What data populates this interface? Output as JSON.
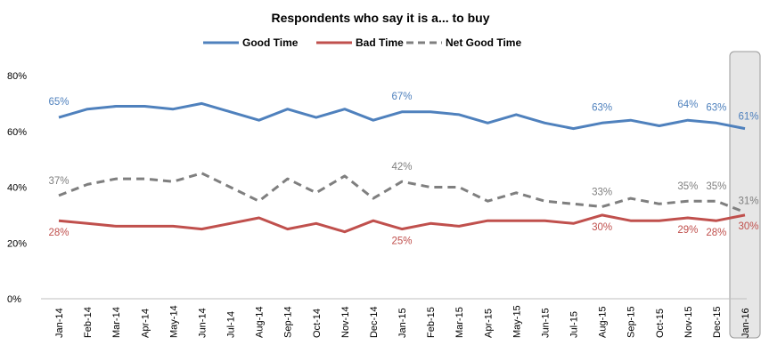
{
  "chart_data": {
    "type": "line",
    "title": "Respondents who say it is a... to buy",
    "xlabel": "",
    "ylabel": "",
    "ylim": [
      0,
      80
    ],
    "yticks": [
      "0%",
      "20%",
      "40%",
      "60%",
      "80%"
    ],
    "grid": false,
    "legend_position": "top",
    "highlight_category": "Jan-16",
    "categories": [
      "Jan-14",
      "Feb-14",
      "Mar-14",
      "Apr-14",
      "May-14",
      "Jun-14",
      "Jul-14",
      "Aug-14",
      "Sep-14",
      "Oct-14",
      "Nov-14",
      "Dec-14",
      "Jan-15",
      "Feb-15",
      "Mar-15",
      "Apr-15",
      "May-15",
      "Jun-15",
      "Jul-15",
      "Aug-15",
      "Sep-15",
      "Oct-15",
      "Nov-15",
      "Dec-15",
      "Jan-16"
    ],
    "series": [
      {
        "name": "Good Time",
        "color": "#4F81BD",
        "dash": "solid",
        "values": [
          65,
          68,
          69,
          69,
          68,
          70,
          67,
          64,
          68,
          65,
          68,
          64,
          67,
          67,
          66,
          63,
          66,
          63,
          61,
          63,
          64,
          62,
          64,
          63,
          61
        ],
        "labels": [
          {
            "index": 0,
            "text": "65%"
          },
          {
            "index": 12,
            "text": "67%"
          },
          {
            "index": 19,
            "text": "63%"
          },
          {
            "index": 22,
            "text": "64%"
          },
          {
            "index": 23,
            "text": "63%"
          },
          {
            "index": 24,
            "text": "61%"
          }
        ]
      },
      {
        "name": "Bad Time",
        "color": "#C0504D",
        "dash": "solid",
        "values": [
          28,
          27,
          26,
          26,
          26,
          25,
          27,
          29,
          25,
          27,
          24,
          28,
          25,
          27,
          26,
          28,
          28,
          28,
          27,
          30,
          28,
          28,
          29,
          28,
          30
        ],
        "labels": [
          {
            "index": 0,
            "text": "28%"
          },
          {
            "index": 12,
            "text": "25%"
          },
          {
            "index": 19,
            "text": "30%"
          },
          {
            "index": 22,
            "text": "29%"
          },
          {
            "index": 23,
            "text": "28%"
          },
          {
            "index": 24,
            "text": "30%"
          }
        ]
      },
      {
        "name": "Net Good Time",
        "color": "#7F7F7F",
        "dash": "dashed",
        "values": [
          37,
          41,
          43,
          43,
          42,
          45,
          40,
          35,
          43,
          38,
          44,
          36,
          42,
          40,
          40,
          35,
          38,
          35,
          34,
          33,
          36,
          34,
          35,
          35,
          31
        ],
        "labels": [
          {
            "index": 0,
            "text": "37%"
          },
          {
            "index": 12,
            "text": "42%"
          },
          {
            "index": 19,
            "text": "33%"
          },
          {
            "index": 22,
            "text": "35%"
          },
          {
            "index": 23,
            "text": "35%"
          },
          {
            "index": 24,
            "text": "31%"
          }
        ]
      }
    ]
  }
}
